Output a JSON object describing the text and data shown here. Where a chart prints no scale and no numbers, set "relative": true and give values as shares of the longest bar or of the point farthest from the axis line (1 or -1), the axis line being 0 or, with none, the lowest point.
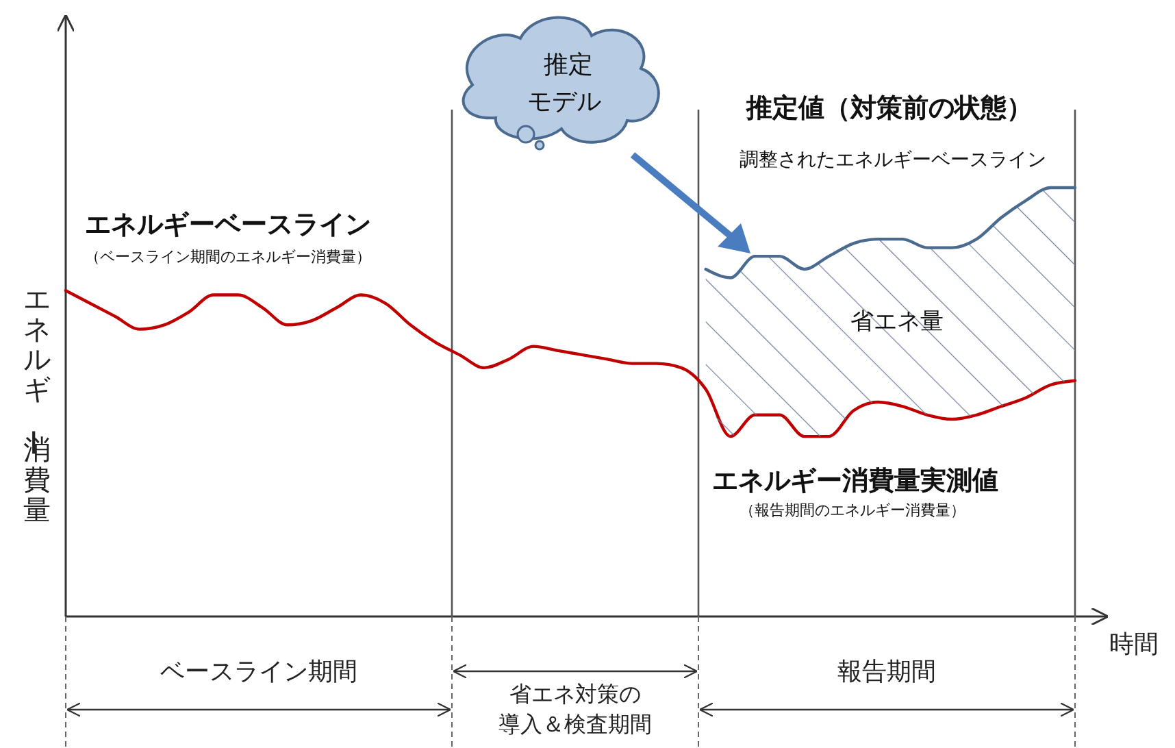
{
  "chart_data": {
    "type": "line",
    "relative": true,
    "xlabel": "時間",
    "ylabel": "エネルギー消費量",
    "categories": [
      null,
      null,
      null,
      null,
      null,
      null,
      null,
      null,
      null,
      null,
      null,
      null,
      null,
      null,
      null,
      null,
      null,
      null,
      null,
      null,
      null,
      null,
      null,
      null,
      null,
      null,
      null,
      null,
      null,
      null,
      null,
      null,
      null,
      null,
      null,
      null,
      null,
      null,
      null,
      null,
      null,
      null
    ],
    "series": [
      {
        "color": "#c00000",
        "values": [
          0.76,
          0.73,
          0.7,
          0.67,
          0.68,
          0.71,
          0.75,
          0.75,
          0.72,
          0.68,
          0.69,
          0.72,
          0.75,
          0.73,
          0.68,
          0.64,
          0.61,
          0.58,
          0.6,
          0.63,
          0.62,
          0.61,
          0.6,
          0.59,
          0.59,
          0.58,
          0.53,
          0.42,
          0.47,
          0.47,
          0.42,
          0.42,
          0.48,
          0.5,
          0.49,
          0.47,
          0.46,
          0.47,
          0.49,
          0.51,
          0.54,
          0.55
        ]
      },
      {
        "color": "#4a6a8f",
        "values": [
          null,
          null,
          null,
          null,
          null,
          null,
          null,
          null,
          null,
          null,
          null,
          null,
          null,
          null,
          null,
          null,
          null,
          null,
          null,
          null,
          null,
          null,
          null,
          null,
          null,
          null,
          0.81,
          0.79,
          0.84,
          0.84,
          0.81,
          0.84,
          0.87,
          0.88,
          0.88,
          0.86,
          0.86,
          0.88,
          0.93,
          0.97,
          1.0,
          1.0
        ],
        "upper": [
          null,
          null,
          null,
          null,
          null,
          null,
          null,
          null,
          null,
          null,
          null,
          null,
          null,
          null,
          null,
          null,
          null,
          null,
          null,
          null,
          null,
          null,
          null,
          null,
          null,
          null,
          0.81,
          0.79,
          0.84,
          0.84,
          0.81,
          0.84,
          0.87,
          0.88,
          0.88,
          0.86,
          0.86,
          0.88,
          0.93,
          0.97,
          1.0,
          1.0
        ],
        "lower": [
          null,
          null,
          null,
          null,
          null,
          null,
          null,
          null,
          null,
          null,
          null,
          null,
          null,
          null,
          null,
          null,
          null,
          null,
          null,
          null,
          null,
          null,
          null,
          null,
          null,
          null,
          0.53,
          0.42,
          0.47,
          0.47,
          0.42,
          0.42,
          0.48,
          0.5,
          0.49,
          0.47,
          0.46,
          0.47,
          0.49,
          0.51,
          0.54,
          0.55
        ]
      }
    ],
    "annotations": [
      "エネルギーベースライン",
      "（ベースライン期間のエネルギー消費量）",
      "推定値（対策前の状態）",
      "調整されたエネルギーベースライン",
      "省エネ量",
      "エネルギー消費量実測値",
      "（報告期間のエネルギー消費量）",
      "推定モデル",
      "ベースライン期間",
      "省エネ対策の導入＆検査期間",
      "報告期間"
    ]
  }
}
